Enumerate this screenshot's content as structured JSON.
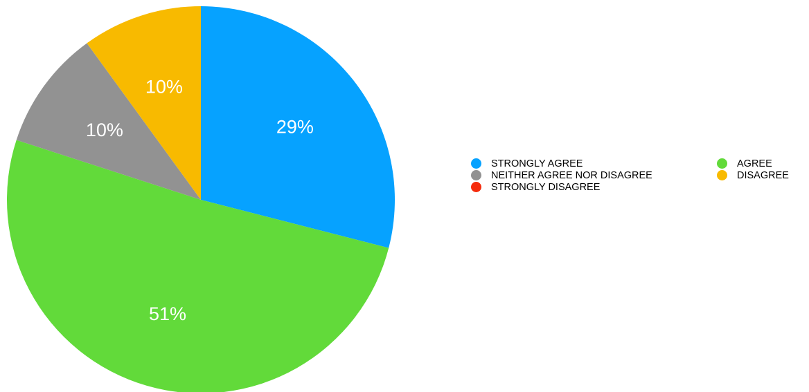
{
  "chart_data": {
    "type": "pie",
    "title": "",
    "slices": [
      {
        "label": "STRONGLY AGREE",
        "value": 29,
        "display": "29%",
        "color": "#06A2FF"
      },
      {
        "label": "AGREE",
        "value": 51,
        "display": "51%",
        "color": "#62DA3A"
      },
      {
        "label": "NEITHER AGREE NOR DISAGREE",
        "value": 10,
        "display": "10%",
        "color": "#929292"
      },
      {
        "label": "DISAGREE",
        "value": 10,
        "display": "10%",
        "color": "#F8BA00"
      },
      {
        "label": "STRONGLY DISAGREE",
        "value": 0,
        "display": "0%",
        "color": "#F52B0C"
      }
    ],
    "legend": {
      "placement": "right",
      "columns": 2,
      "order": [
        "STRONGLY AGREE",
        "AGREE",
        "NEITHER AGREE NOR DISAGREE",
        "DISAGREE",
        "STRONGLY DISAGREE"
      ]
    }
  }
}
